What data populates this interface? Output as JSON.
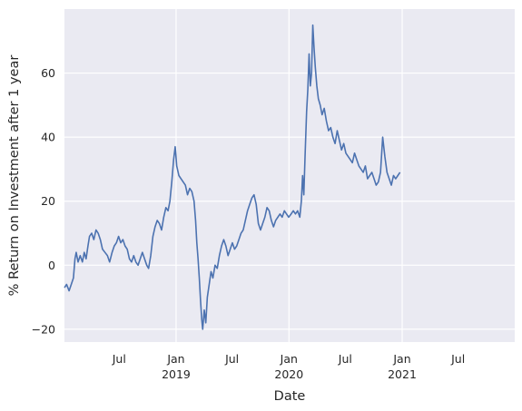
{
  "chart_data": {
    "type": "line",
    "title": "",
    "xlabel": "Date",
    "ylabel": "% Return on Investment after 1 year",
    "xlim": [
      "2018-01-05",
      "2021-12-31"
    ],
    "ylim": [
      -24,
      80
    ],
    "grid": true,
    "background": "#eaeaf2",
    "line_color": "#4c72b0",
    "y_ticks": [
      -20,
      0,
      20,
      40,
      60
    ],
    "x_ticks": [
      {
        "date": "2018-07-01",
        "label": "Jul",
        "year": ""
      },
      {
        "date": "2019-01-01",
        "label": "Jan",
        "year": "2019"
      },
      {
        "date": "2019-07-01",
        "label": "Jul",
        "year": ""
      },
      {
        "date": "2020-01-01",
        "label": "Jan",
        "year": "2020"
      },
      {
        "date": "2020-07-01",
        "label": "Jul",
        "year": ""
      },
      {
        "date": "2021-01-01",
        "label": "Jan",
        "year": "2021"
      },
      {
        "date": "2021-07-01",
        "label": "Jul",
        "year": ""
      }
    ],
    "series": [
      {
        "points": [
          [
            "2018-01-05",
            -7
          ],
          [
            "2018-01-12",
            -6
          ],
          [
            "2018-01-20",
            -8
          ],
          [
            "2018-01-27",
            -6
          ],
          [
            "2018-02-03",
            -4
          ],
          [
            "2018-02-08",
            2
          ],
          [
            "2018-02-12",
            4
          ],
          [
            "2018-02-18",
            1
          ],
          [
            "2018-02-25",
            3
          ],
          [
            "2018-03-04",
            1
          ],
          [
            "2018-03-10",
            4
          ],
          [
            "2018-03-16",
            2
          ],
          [
            "2018-03-22",
            6
          ],
          [
            "2018-03-27",
            9
          ],
          [
            "2018-04-03",
            10
          ],
          [
            "2018-04-10",
            8
          ],
          [
            "2018-04-17",
            11
          ],
          [
            "2018-04-24",
            10
          ],
          [
            "2018-05-01",
            8
          ],
          [
            "2018-05-08",
            5
          ],
          [
            "2018-05-16",
            4
          ],
          [
            "2018-05-24",
            3
          ],
          [
            "2018-05-31",
            1
          ],
          [
            "2018-06-08",
            4
          ],
          [
            "2018-06-15",
            6
          ],
          [
            "2018-06-22",
            7
          ],
          [
            "2018-06-29",
            9
          ],
          [
            "2018-07-06",
            7
          ],
          [
            "2018-07-13",
            8
          ],
          [
            "2018-07-20",
            6
          ],
          [
            "2018-07-27",
            5
          ],
          [
            "2018-08-03",
            2
          ],
          [
            "2018-08-10",
            1
          ],
          [
            "2018-08-17",
            3
          ],
          [
            "2018-08-24",
            1
          ],
          [
            "2018-08-31",
            0
          ],
          [
            "2018-09-07",
            2
          ],
          [
            "2018-09-14",
            4
          ],
          [
            "2018-09-21",
            2
          ],
          [
            "2018-09-28",
            0
          ],
          [
            "2018-10-04",
            -1
          ],
          [
            "2018-10-11",
            3
          ],
          [
            "2018-10-18",
            9
          ],
          [
            "2018-10-25",
            12
          ],
          [
            "2018-11-01",
            14
          ],
          [
            "2018-11-08",
            13
          ],
          [
            "2018-11-15",
            11
          ],
          [
            "2018-11-22",
            15
          ],
          [
            "2018-11-29",
            18
          ],
          [
            "2018-12-06",
            17
          ],
          [
            "2018-12-12",
            20
          ],
          [
            "2018-12-18",
            26
          ],
          [
            "2018-12-24",
            33
          ],
          [
            "2018-12-29",
            37
          ],
          [
            "2019-01-03",
            31
          ],
          [
            "2019-01-10",
            28
          ],
          [
            "2019-01-17",
            27
          ],
          [
            "2019-01-24",
            26
          ],
          [
            "2019-01-31",
            25
          ],
          [
            "2019-02-07",
            22
          ],
          [
            "2019-02-14",
            24
          ],
          [
            "2019-02-21",
            23
          ],
          [
            "2019-02-28",
            20
          ],
          [
            "2019-03-05",
            14
          ],
          [
            "2019-03-09",
            7
          ],
          [
            "2019-03-13",
            2
          ],
          [
            "2019-03-17",
            -4
          ],
          [
            "2019-03-21",
            -11
          ],
          [
            "2019-03-25",
            -17
          ],
          [
            "2019-03-28",
            -20
          ],
          [
            "2019-04-02",
            -14
          ],
          [
            "2019-04-07",
            -18
          ],
          [
            "2019-04-12",
            -10
          ],
          [
            "2019-04-18",
            -6
          ],
          [
            "2019-04-24",
            -2
          ],
          [
            "2019-04-30",
            -4
          ],
          [
            "2019-05-07",
            0
          ],
          [
            "2019-05-14",
            -1
          ],
          [
            "2019-05-21",
            3
          ],
          [
            "2019-05-28",
            6
          ],
          [
            "2019-06-04",
            8
          ],
          [
            "2019-06-11",
            6
          ],
          [
            "2019-06-18",
            3
          ],
          [
            "2019-06-25",
            5
          ],
          [
            "2019-07-02",
            7
          ],
          [
            "2019-07-09",
            5
          ],
          [
            "2019-07-16",
            6
          ],
          [
            "2019-07-23",
            8
          ],
          [
            "2019-07-30",
            10
          ],
          [
            "2019-08-06",
            11
          ],
          [
            "2019-08-13",
            14
          ],
          [
            "2019-08-20",
            17
          ],
          [
            "2019-08-27",
            19
          ],
          [
            "2019-09-03",
            21
          ],
          [
            "2019-09-10",
            22
          ],
          [
            "2019-09-17",
            19
          ],
          [
            "2019-09-24",
            13
          ],
          [
            "2019-10-01",
            11
          ],
          [
            "2019-10-08",
            13
          ],
          [
            "2019-10-15",
            15
          ],
          [
            "2019-10-22",
            18
          ],
          [
            "2019-10-29",
            17
          ],
          [
            "2019-11-05",
            14
          ],
          [
            "2019-11-12",
            12
          ],
          [
            "2019-11-19",
            14
          ],
          [
            "2019-11-26",
            15
          ],
          [
            "2019-12-03",
            16
          ],
          [
            "2019-12-10",
            15
          ],
          [
            "2019-12-17",
            17
          ],
          [
            "2019-12-24",
            16
          ],
          [
            "2019-12-31",
            15
          ],
          [
            "2020-01-08",
            16
          ],
          [
            "2020-01-15",
            17
          ],
          [
            "2020-01-22",
            16
          ],
          [
            "2020-01-29",
            17
          ],
          [
            "2020-02-05",
            15
          ],
          [
            "2020-02-10",
            20
          ],
          [
            "2020-02-14",
            28
          ],
          [
            "2020-02-18",
            22
          ],
          [
            "2020-02-22",
            34
          ],
          [
            "2020-02-27",
            48
          ],
          [
            "2020-03-02",
            55
          ],
          [
            "2020-03-06",
            66
          ],
          [
            "2020-03-10",
            56
          ],
          [
            "2020-03-14",
            60
          ],
          [
            "2020-03-18",
            75
          ],
          [
            "2020-03-22",
            68
          ],
          [
            "2020-03-26",
            62
          ],
          [
            "2020-03-31",
            56
          ],
          [
            "2020-04-05",
            52
          ],
          [
            "2020-04-11",
            50
          ],
          [
            "2020-04-17",
            47
          ],
          [
            "2020-04-24",
            49
          ],
          [
            "2020-05-01",
            45
          ],
          [
            "2020-05-08",
            42
          ],
          [
            "2020-05-15",
            43
          ],
          [
            "2020-05-22",
            40
          ],
          [
            "2020-05-29",
            38
          ],
          [
            "2020-06-05",
            42
          ],
          [
            "2020-06-12",
            39
          ],
          [
            "2020-06-19",
            36
          ],
          [
            "2020-06-26",
            38
          ],
          [
            "2020-07-03",
            35
          ],
          [
            "2020-07-10",
            34
          ],
          [
            "2020-07-17",
            33
          ],
          [
            "2020-07-24",
            32
          ],
          [
            "2020-07-31",
            35
          ],
          [
            "2020-08-07",
            33
          ],
          [
            "2020-08-14",
            31
          ],
          [
            "2020-08-21",
            30
          ],
          [
            "2020-08-28",
            29
          ],
          [
            "2020-09-04",
            31
          ],
          [
            "2020-09-11",
            27
          ],
          [
            "2020-09-18",
            28
          ],
          [
            "2020-09-25",
            29
          ],
          [
            "2020-10-02",
            27
          ],
          [
            "2020-10-09",
            25
          ],
          [
            "2020-10-16",
            26
          ],
          [
            "2020-10-23",
            29
          ],
          [
            "2020-10-30",
            40
          ],
          [
            "2020-11-06",
            34
          ],
          [
            "2020-11-13",
            29
          ],
          [
            "2020-11-20",
            27
          ],
          [
            "2020-11-27",
            25
          ],
          [
            "2020-12-04",
            28
          ],
          [
            "2020-12-11",
            27
          ],
          [
            "2020-12-18",
            28
          ],
          [
            "2020-12-25",
            29
          ]
        ]
      }
    ]
  }
}
